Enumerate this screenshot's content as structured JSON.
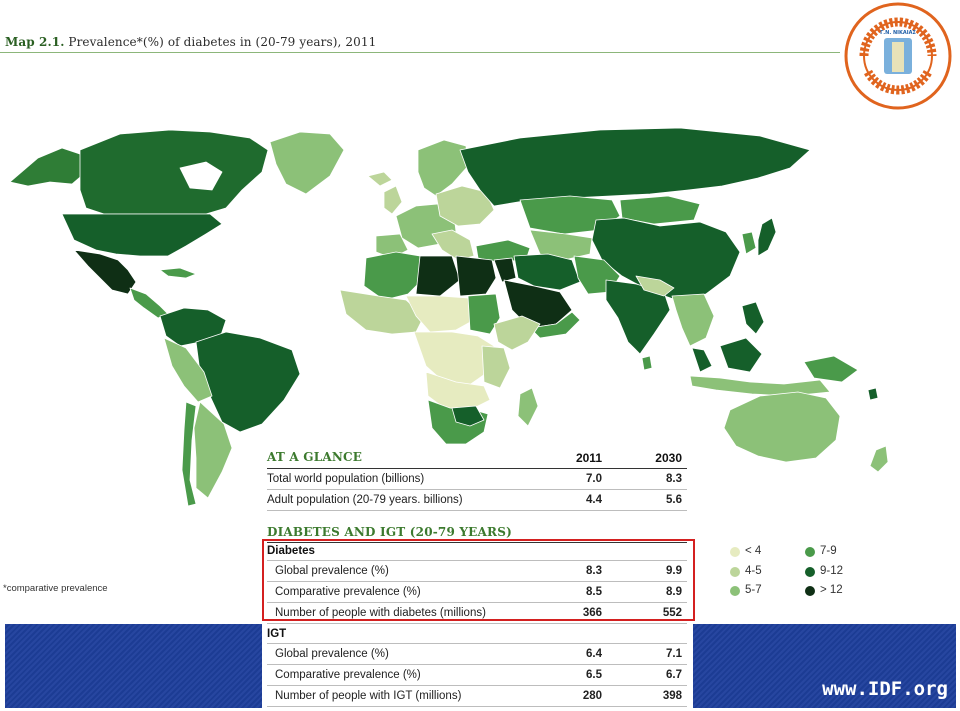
{
  "title": {
    "prefix": "Map 2.1.",
    "text": "Prevalence*(%) of diabetes in (20-79 years), 2011"
  },
  "logo": {
    "name": "ΔΙΑΒΗΤΟΛΟΓΙΚΟ ΚΕΝΤΡΟ Γ' ΠΑΘΟΛΟΓΙΚΟΥ ΤΜΗΜΑΤΟΣ",
    "center_text": "Γ.Ν. ΝΙΚΑΙΑΣ ΠΕΙΡΑΙΑ"
  },
  "footnote": "*comparative prevalence",
  "url": "www.IDF.org",
  "at_a_glance": {
    "heading": "AT A GLANCE",
    "year_1": "2011",
    "year_2": "2030",
    "rows": [
      {
        "label": "Total world population (billions)",
        "v1": "7.0",
        "v2": "8.3"
      },
      {
        "label": "Adult population (20-79 years. billions)",
        "v1": "4.4",
        "v2": "5.6"
      }
    ]
  },
  "diabetes_igt": {
    "heading": "DIABETES AND IGT (20-79 YEARS)",
    "diabetes_label": "Diabetes",
    "diabetes_rows": [
      {
        "label": "Global prevalence (%)",
        "v1": "8.3",
        "v2": "9.9"
      },
      {
        "label": "Comparative prevalence (%)",
        "v1": "8.5",
        "v2": "8.9"
      },
      {
        "label": "Number of people with diabetes (millions)",
        "v1": "366",
        "v2": "552"
      }
    ],
    "igt_label": "IGT",
    "igt_rows": [
      {
        "label": "Global prevalence (%)",
        "v1": "6.4",
        "v2": "7.1"
      },
      {
        "label": "Comparative prevalence (%)",
        "v1": "6.5",
        "v2": "6.7"
      },
      {
        "label": "Number of people with IGT (millions)",
        "v1": "280",
        "v2": "398"
      }
    ]
  },
  "legend": [
    {
      "label": "< 4",
      "color": "#e6ebc0"
    },
    {
      "label": "4-5",
      "color": "#bcd59a"
    },
    {
      "label": "5-7",
      "color": "#8cc178"
    },
    {
      "label": "7-9",
      "color": "#4a9a4a"
    },
    {
      "label": "9-12",
      "color": "#155f2a"
    },
    {
      "label": "> 12",
      "color": "#0f2f15"
    }
  ],
  "colors": {
    "highlight_box": "#d42020",
    "band": "#1e3f9c"
  }
}
